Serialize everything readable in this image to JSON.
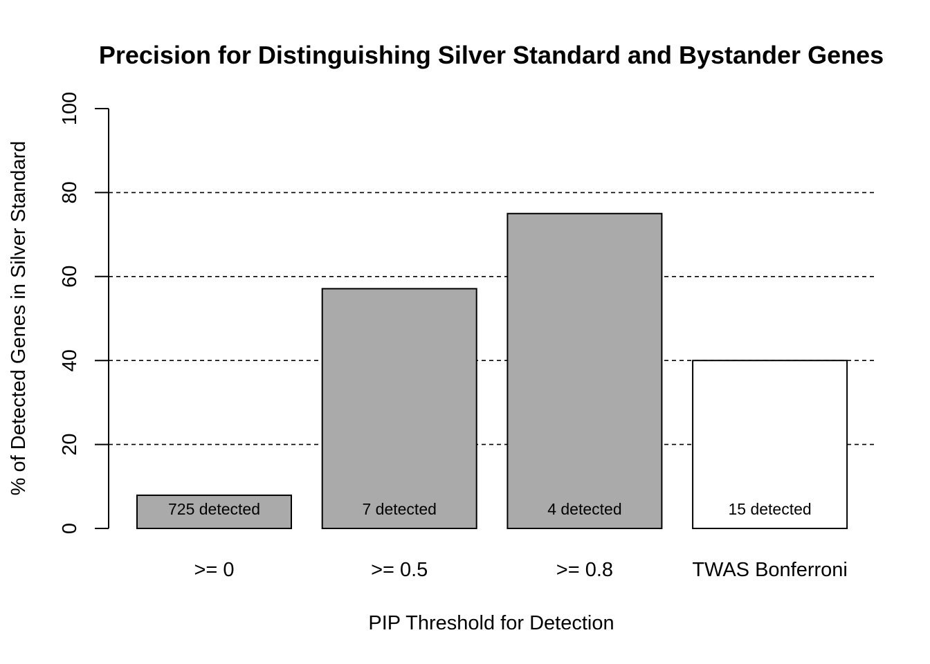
{
  "chart_data": {
    "type": "bar",
    "title": "Precision for Distinguishing Silver Standard and Bystander Genes",
    "xlabel": "PIP Threshold for Detection",
    "ylabel": "% of Detected Genes in Silver Standard",
    "categories": [
      ">= 0",
      ">= 0.5",
      ">= 0.8",
      "TWAS Bonferroni"
    ],
    "values": [
      7.9,
      57.1,
      75,
      40
    ],
    "bar_labels": [
      "725 detected",
      "7 detected",
      "4 detected",
      "15 detected"
    ],
    "bar_colors": [
      "#aaaaaa",
      "#aaaaaa",
      "#aaaaaa",
      "#ffffff"
    ],
    "ylim": [
      0,
      100
    ],
    "yticks": [
      0,
      20,
      40,
      60,
      80,
      100
    ],
    "gridlines": [
      20,
      40,
      60,
      80
    ],
    "grid": "dashed horizontal"
  }
}
